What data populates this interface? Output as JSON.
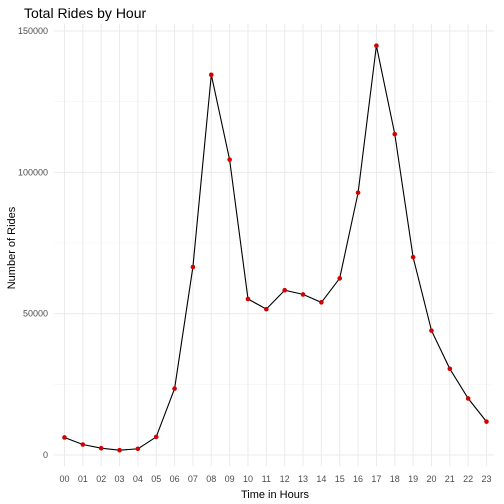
{
  "chart_data": {
    "type": "line",
    "title": "Total Rides by Hour",
    "xlabel": "Time in Hours",
    "ylabel": "Number of Rides",
    "categories": [
      "00",
      "01",
      "02",
      "03",
      "04",
      "05",
      "06",
      "07",
      "08",
      "09",
      "10",
      "11",
      "12",
      "13",
      "14",
      "15",
      "16",
      "17",
      "18",
      "19",
      "20",
      "21",
      "22",
      "23"
    ],
    "values": [
      6200,
      3700,
      2400,
      1700,
      2200,
      6400,
      23500,
      66500,
      134500,
      104500,
      55200,
      51600,
      58300,
      56800,
      54000,
      62500,
      92800,
      144800,
      113500,
      70000,
      44000,
      30500,
      20000,
      11800
    ],
    "ylim": [
      0,
      150000
    ],
    "yticks": [
      0,
      50000,
      100000,
      150000
    ],
    "ytick_labels": [
      "0",
      "50000",
      "100000",
      "150000"
    ],
    "grid": true,
    "line_color": "#000000",
    "point_color": "#d40000"
  }
}
